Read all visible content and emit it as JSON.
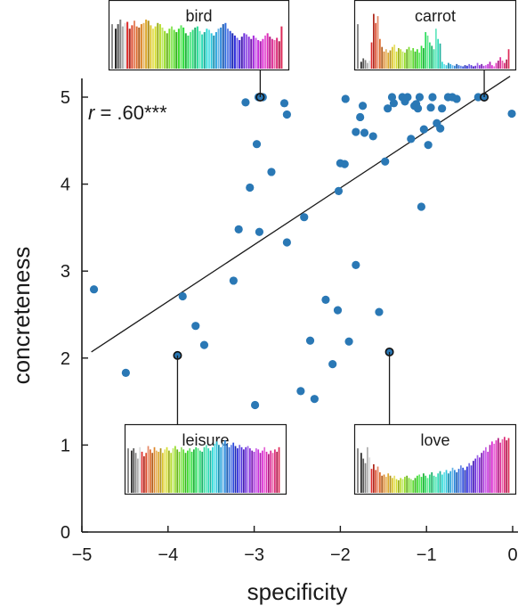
{
  "chart_data": {
    "type": "scatter",
    "xlabel": "specificity",
    "ylabel": "concreteness",
    "xlim": [
      -5,
      0
    ],
    "ylim": [
      0,
      5
    ],
    "xticks": [
      -5,
      -4,
      -3,
      -2,
      -1,
      0
    ],
    "xtick_labels": [
      "−5",
      "−4",
      "−3",
      "−2",
      "−1",
      "0"
    ],
    "yticks": [
      0,
      1,
      2,
      3,
      4,
      5
    ],
    "ytick_labels": [
      "0",
      "1",
      "2",
      "3",
      "4",
      "5"
    ],
    "point_color": "#2a78b5",
    "annotation": {
      "r": "r",
      "rest": " = .60***"
    },
    "fit_line": {
      "x": [
        -4.89,
        -0.03
      ],
      "y": [
        2.07,
        5.24
      ]
    },
    "points": [
      {
        "x": -4.86,
        "y": 2.79
      },
      {
        "x": -4.49,
        "y": 1.83
      },
      {
        "x": -3.83,
        "y": 2.71
      },
      {
        "x": -3.68,
        "y": 2.37
      },
      {
        "x": -3.58,
        "y": 2.15
      },
      {
        "x": -3.24,
        "y": 2.89
      },
      {
        "x": -3.18,
        "y": 3.48
      },
      {
        "x": -3.1,
        "y": 4.94
      },
      {
        "x": -3.05,
        "y": 3.96
      },
      {
        "x": -2.99,
        "y": 1.46
      },
      {
        "x": -2.97,
        "y": 4.46
      },
      {
        "x": -2.94,
        "y": 3.45
      },
      {
        "x": -2.95,
        "y": 5.0
      },
      {
        "x": -2.9,
        "y": 5.0
      },
      {
        "x": -2.8,
        "y": 4.14
      },
      {
        "x": -2.65,
        "y": 4.93
      },
      {
        "x": -2.62,
        "y": 4.8
      },
      {
        "x": -2.62,
        "y": 3.33
      },
      {
        "x": -2.46,
        "y": 1.62
      },
      {
        "x": -2.42,
        "y": 3.62
      },
      {
        "x": -2.35,
        "y": 2.2
      },
      {
        "x": -2.3,
        "y": 1.53
      },
      {
        "x": -2.17,
        "y": 2.67
      },
      {
        "x": -2.09,
        "y": 1.93
      },
      {
        "x": -2.03,
        "y": 2.55
      },
      {
        "x": -2.02,
        "y": 3.92
      },
      {
        "x": -2.0,
        "y": 4.24
      },
      {
        "x": -1.95,
        "y": 4.23
      },
      {
        "x": -1.94,
        "y": 4.98
      },
      {
        "x": -1.9,
        "y": 2.19
      },
      {
        "x": -1.82,
        "y": 3.07
      },
      {
        "x": -1.82,
        "y": 4.6
      },
      {
        "x": -1.77,
        "y": 4.77
      },
      {
        "x": -1.74,
        "y": 4.9
      },
      {
        "x": -1.72,
        "y": 4.59
      },
      {
        "x": -1.62,
        "y": 4.55
      },
      {
        "x": -1.55,
        "y": 2.53
      },
      {
        "x": -1.48,
        "y": 4.26
      },
      {
        "x": -1.45,
        "y": 4.87
      },
      {
        "x": -1.4,
        "y": 5.0
      },
      {
        "x": -1.38,
        "y": 4.93
      },
      {
        "x": -1.28,
        "y": 5.0
      },
      {
        "x": -1.25,
        "y": 4.95
      },
      {
        "x": -1.22,
        "y": 5.0
      },
      {
        "x": -1.18,
        "y": 4.52
      },
      {
        "x": -1.14,
        "y": 4.9
      },
      {
        "x": -1.12,
        "y": 4.92
      },
      {
        "x": -1.1,
        "y": 4.87
      },
      {
        "x": -1.08,
        "y": 5.0
      },
      {
        "x": -1.06,
        "y": 3.74
      },
      {
        "x": -1.03,
        "y": 4.63
      },
      {
        "x": -0.98,
        "y": 4.45
      },
      {
        "x": -0.95,
        "y": 4.88
      },
      {
        "x": -0.93,
        "y": 5.0
      },
      {
        "x": -0.88,
        "y": 4.7
      },
      {
        "x": -0.84,
        "y": 4.64
      },
      {
        "x": -0.82,
        "y": 4.87
      },
      {
        "x": -0.75,
        "y": 5.0
      },
      {
        "x": -0.7,
        "y": 5.0
      },
      {
        "x": -0.65,
        "y": 4.98
      },
      {
        "x": -0.4,
        "y": 5.0
      },
      {
        "x": -0.01,
        "y": 4.81
      }
    ],
    "highlighted": [
      {
        "word": "bird",
        "x": -2.93,
        "y": 5.0
      },
      {
        "word": "carrot",
        "x": -0.33,
        "y": 5.0
      },
      {
        "word": "leisure",
        "x": -3.89,
        "y": 2.03
      },
      {
        "word": "love",
        "x": -1.43,
        "y": 2.07
      }
    ],
    "insets": [
      {
        "word": "bird",
        "anchor": "bird",
        "bars": [
          0.7,
          0.78,
          0.86,
          0.74,
          0.8,
          0.82,
          0.7,
          0.76,
          0.84,
          0.74,
          0.72,
          0.78,
          0.8,
          0.86,
          0.84,
          0.76,
          0.7,
          0.74,
          0.8,
          0.78,
          0.72,
          0.66,
          0.62,
          0.7,
          0.74,
          0.68,
          0.64,
          0.7,
          0.76,
          0.72,
          0.62,
          0.58,
          0.64,
          0.68,
          0.72,
          0.74,
          0.66,
          0.6,
          0.64,
          0.7,
          0.68,
          0.62,
          0.58,
          0.64,
          0.7,
          0.72,
          0.78,
          0.8,
          0.7,
          0.66,
          0.62,
          0.58,
          0.54,
          0.5,
          0.56,
          0.62,
          0.6,
          0.56,
          0.52,
          0.58,
          0.54,
          0.5,
          0.48,
          0.52,
          0.58,
          0.62,
          0.56,
          0.52,
          0.5,
          0.54,
          0.48,
          0.74
        ]
      },
      {
        "word": "carrot",
        "anchor": "carrot",
        "bars": [
          0.12,
          0.18,
          0.15,
          0.1,
          0.14,
          0.46,
          0.96,
          0.8,
          0.92,
          0.52,
          0.38,
          0.3,
          0.34,
          0.28,
          0.32,
          0.38,
          0.42,
          0.3,
          0.36,
          0.34,
          0.3,
          0.28,
          0.34,
          0.38,
          0.32,
          0.36,
          0.3,
          0.34,
          0.28,
          0.4,
          0.36,
          0.64,
          0.58,
          0.46,
          0.4,
          0.34,
          0.7,
          0.52,
          0.44,
          0.12,
          0.08,
          0.06,
          0.1,
          0.08,
          0.06,
          0.05,
          0.08,
          0.06,
          0.05,
          0.04,
          0.06,
          0.05,
          0.08,
          0.06,
          0.04,
          0.05,
          0.1,
          0.06,
          0.08,
          0.05,
          0.06,
          0.08,
          0.12,
          0.06,
          0.04,
          0.1,
          0.14,
          0.2,
          0.14,
          0.1,
          0.16,
          0.34
        ]
      },
      {
        "word": "leisure",
        "anchor": "leisure",
        "bars": [
          0.74,
          0.78,
          0.7,
          0.6,
          0.8,
          0.72,
          0.64,
          0.7,
          0.82,
          0.76,
          0.7,
          0.8,
          0.74,
          0.72,
          0.78,
          0.7,
          0.76,
          0.8,
          0.74,
          0.7,
          0.78,
          0.82,
          0.76,
          0.72,
          0.8,
          0.76,
          0.7,
          0.74,
          0.78,
          0.72,
          0.76,
          0.8,
          0.78,
          0.74,
          0.72,
          0.8,
          0.84,
          0.78,
          0.74,
          0.8,
          0.86,
          0.9,
          0.84,
          0.8,
          0.88,
          0.92,
          0.86,
          0.8,
          0.84,
          0.88,
          0.82,
          0.78,
          0.84,
          0.8,
          0.76,
          0.8,
          0.82,
          0.78,
          0.74,
          0.72,
          0.78,
          0.76,
          0.7,
          0.74,
          0.8,
          0.72,
          0.68,
          0.74,
          0.7,
          0.76,
          0.72,
          0.8
        ]
      },
      {
        "word": "love",
        "anchor": "love",
        "bars": [
          0.7,
          0.6,
          0.52,
          0.8,
          0.62,
          0.42,
          0.5,
          0.4,
          0.46,
          0.36,
          0.3,
          0.32,
          0.28,
          0.34,
          0.3,
          0.26,
          0.3,
          0.24,
          0.22,
          0.26,
          0.24,
          0.28,
          0.3,
          0.26,
          0.24,
          0.22,
          0.26,
          0.3,
          0.32,
          0.28,
          0.34,
          0.3,
          0.26,
          0.32,
          0.36,
          0.3,
          0.28,
          0.34,
          0.38,
          0.32,
          0.36,
          0.4,
          0.34,
          0.38,
          0.44,
          0.4,
          0.36,
          0.42,
          0.48,
          0.44,
          0.4,
          0.46,
          0.52,
          0.48,
          0.56,
          0.6,
          0.66,
          0.62,
          0.7,
          0.74,
          0.8,
          0.72,
          0.84,
          0.9,
          0.86,
          0.92,
          0.96,
          0.88,
          0.94,
          0.98,
          0.92,
          0.96
        ]
      }
    ]
  }
}
